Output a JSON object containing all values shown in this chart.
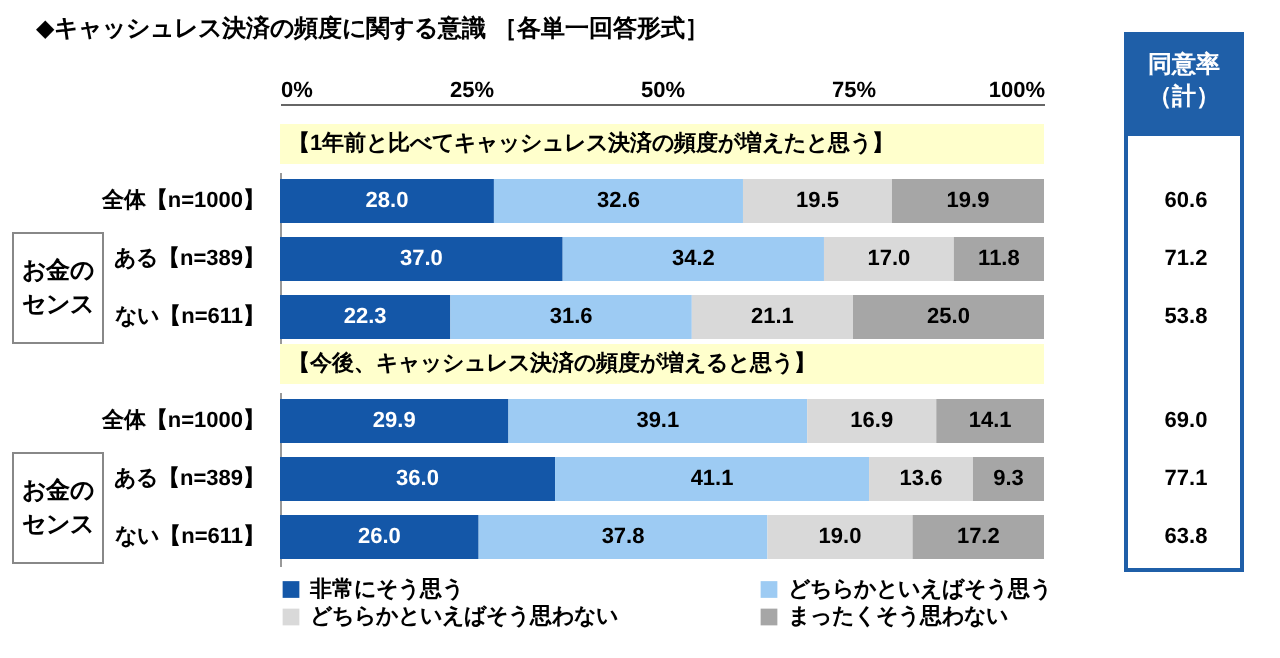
{
  "chart_data": [
    {
      "type": "bar",
      "orientation": "horizontal",
      "stacked": true,
      "title": "◆キャッシュレス決済の頻度に関する意識 ［各単一回答形式］",
      "subtitle": "【1年前と比べてキャッシュレス決済の頻度が増えたと思う】",
      "categories": [
        "全体【n=1000】",
        "ある【n=389】",
        "ない【n=611】"
      ],
      "series": [
        {
          "color": "#1457a8",
          "values": [
            28.0,
            37.0,
            22.3
          ],
          "value_labels": [
            "28.0",
            "37.0",
            "22.3"
          ]
        },
        {
          "color": "#9dcbf3",
          "values": [
            32.6,
            34.2,
            31.6
          ],
          "value_labels": [
            "32.6",
            "34.2",
            "31.6"
          ]
        },
        {
          "color": "#d9d9d9",
          "values": [
            19.5,
            17.0,
            21.1
          ],
          "value_labels": [
            "19.5",
            "17.0",
            "21.1"
          ]
        },
        {
          "color": "#a6a6a6",
          "values": [
            19.9,
            11.8,
            25.0
          ],
          "value_labels": [
            "19.9",
            "11.8",
            "25.0"
          ]
        }
      ],
      "xlim": [
        0,
        100
      ],
      "xticks": [
        {
          "value": 0,
          "label": "0%"
        },
        {
          "value": 25,
          "label": "25%"
        },
        {
          "value": 50,
          "label": "50%"
        },
        {
          "value": 75,
          "label": "75%"
        },
        {
          "value": 100,
          "label": "100%"
        }
      ],
      "annotations": [
        "お金のセンス",
        "同意率（計）",
        "60.6",
        "71.2",
        "53.8"
      ]
    },
    {
      "type": "bar",
      "orientation": "horizontal",
      "stacked": true,
      "subtitle": "【今後、キャッシュレス決済の頻度が増えると思う】",
      "categories": [
        "全体【n=1000】",
        "ある【n=389】",
        "ない【n=611】"
      ],
      "series": [
        {
          "name": "非常にそう思う",
          "color": "#1457a8",
          "values": [
            29.9,
            36.0,
            26.0
          ],
          "value_labels": [
            "29.9",
            "36.0",
            "26.0"
          ]
        },
        {
          "name": "どちらかといえばそう思う",
          "color": "#9dcbf3",
          "values": [
            39.1,
            41.1,
            37.8
          ],
          "value_labels": [
            "39.1",
            "41.1",
            "37.8"
          ]
        },
        {
          "name": "どちらかといえばそう思わない",
          "color": "#d9d9d9",
          "values": [
            16.9,
            13.6,
            19.0
          ],
          "value_labels": [
            "16.9",
            "13.6",
            "19.0"
          ]
        },
        {
          "name": "まったくそう思わない",
          "color": "#a6a6a6",
          "values": [
            14.1,
            9.3,
            17.2
          ],
          "value_labels": [
            "14.1",
            "9.3",
            "17.2"
          ]
        }
      ],
      "xlim": [
        0,
        100
      ],
      "tick_labels": "y",
      "legend": "bottom",
      "annotations": [
        "お金のセンス",
        "69.0",
        "77.1",
        "63.8"
      ]
    }
  ]
}
